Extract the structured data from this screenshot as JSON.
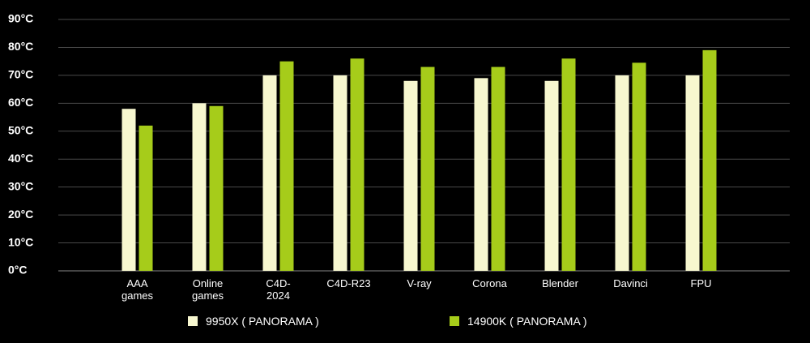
{
  "chart_data": {
    "type": "bar",
    "categories": [
      "AAA games",
      "Online games",
      "C4D-2024",
      "C4D-R23",
      "V-ray",
      "Corona",
      "Blender",
      "Davinci",
      "FPU"
    ],
    "series": [
      {
        "name": "9950X ( PANORAMA )",
        "color": "#f7f7cf",
        "values": [
          58,
          60,
          70,
          70,
          68,
          69,
          68,
          70,
          70
        ]
      },
      {
        "name": "14900K ( PANORAMA )",
        "color": "#a6cc1a",
        "values": [
          52,
          59,
          75,
          76,
          73,
          73,
          76,
          74.5,
          79
        ]
      }
    ],
    "ylim": [
      0,
      90
    ],
    "yticks": [
      {
        "value": 0,
        "label": "0°C"
      },
      {
        "value": 10,
        "label": "10°C"
      },
      {
        "value": 20,
        "label": "20°C"
      },
      {
        "value": 30,
        "label": "30°C"
      },
      {
        "value": 40,
        "label": "40°C"
      },
      {
        "value": 50,
        "label": "50°C"
      },
      {
        "value": 60,
        "label": "60°C"
      },
      {
        "value": 70,
        "label": "70°C"
      },
      {
        "value": 80,
        "label": "80°C"
      },
      {
        "value": 90,
        "label": "90°C"
      }
    ],
    "grid": true
  }
}
